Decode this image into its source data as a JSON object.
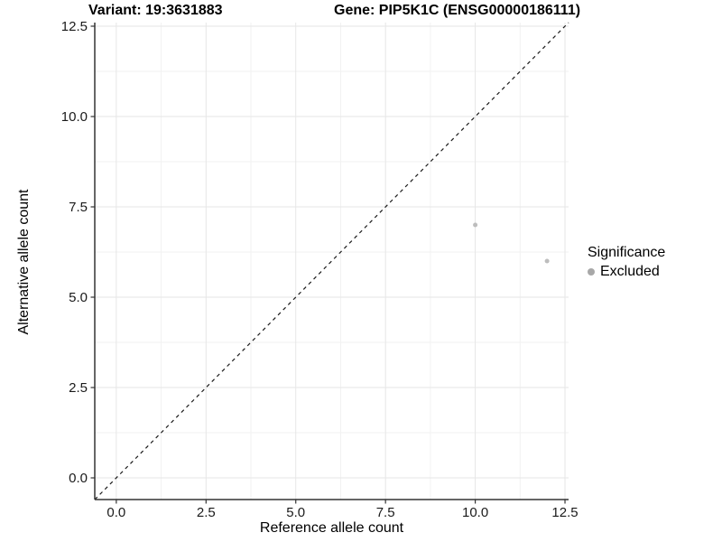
{
  "chart_data": {
    "type": "scatter",
    "title_left": "Variant: 19:3631883",
    "title_right": "Gene: PIP5K1C (ENSG00000186111)",
    "xlabel": "Reference allele count",
    "ylabel": "Alternative allele count",
    "xlim": [
      -0.6,
      12.6
    ],
    "ylim": [
      -0.6,
      12.6
    ],
    "x_tick_labels": [
      "0.0",
      "2.5",
      "5.0",
      "7.5",
      "10.0",
      "12.5"
    ],
    "y_tick_labels": [
      "0.0",
      "2.5",
      "5.0",
      "7.5",
      "10.0",
      "12.5"
    ],
    "x_major_ticks": [
      0,
      2.5,
      5,
      7.5,
      10,
      12.5
    ],
    "y_major_ticks": [
      0,
      2.5,
      5,
      7.5,
      10,
      12.5
    ],
    "x_minor_ticks": [
      1.25,
      3.75,
      6.25,
      8.75,
      11.25
    ],
    "y_minor_ticks": [
      1.25,
      3.75,
      6.25,
      8.75,
      11.25
    ],
    "grid": true,
    "reference_line": {
      "type": "identity",
      "style": "dashed",
      "slope": 1,
      "intercept": 0
    },
    "series": [
      {
        "name": "Excluded",
        "points": [
          {
            "x": 10,
            "y": 7
          },
          {
            "x": 12,
            "y": 6
          }
        ]
      }
    ],
    "legend": {
      "title": "Significance",
      "position": "right",
      "entries": [
        {
          "label": "Excluded",
          "color": "#a8a8a8"
        }
      ]
    },
    "colors": {
      "point": "#bdbdbd",
      "legend_key": "#a8a8a8",
      "reference_line": "#1a1a1a",
      "grid_major": "#e6e6e6",
      "grid_minor": "#f2f2f2",
      "axis_line": "#333333",
      "tick_text": "#1a1a1a",
      "background": "#ffffff"
    }
  }
}
